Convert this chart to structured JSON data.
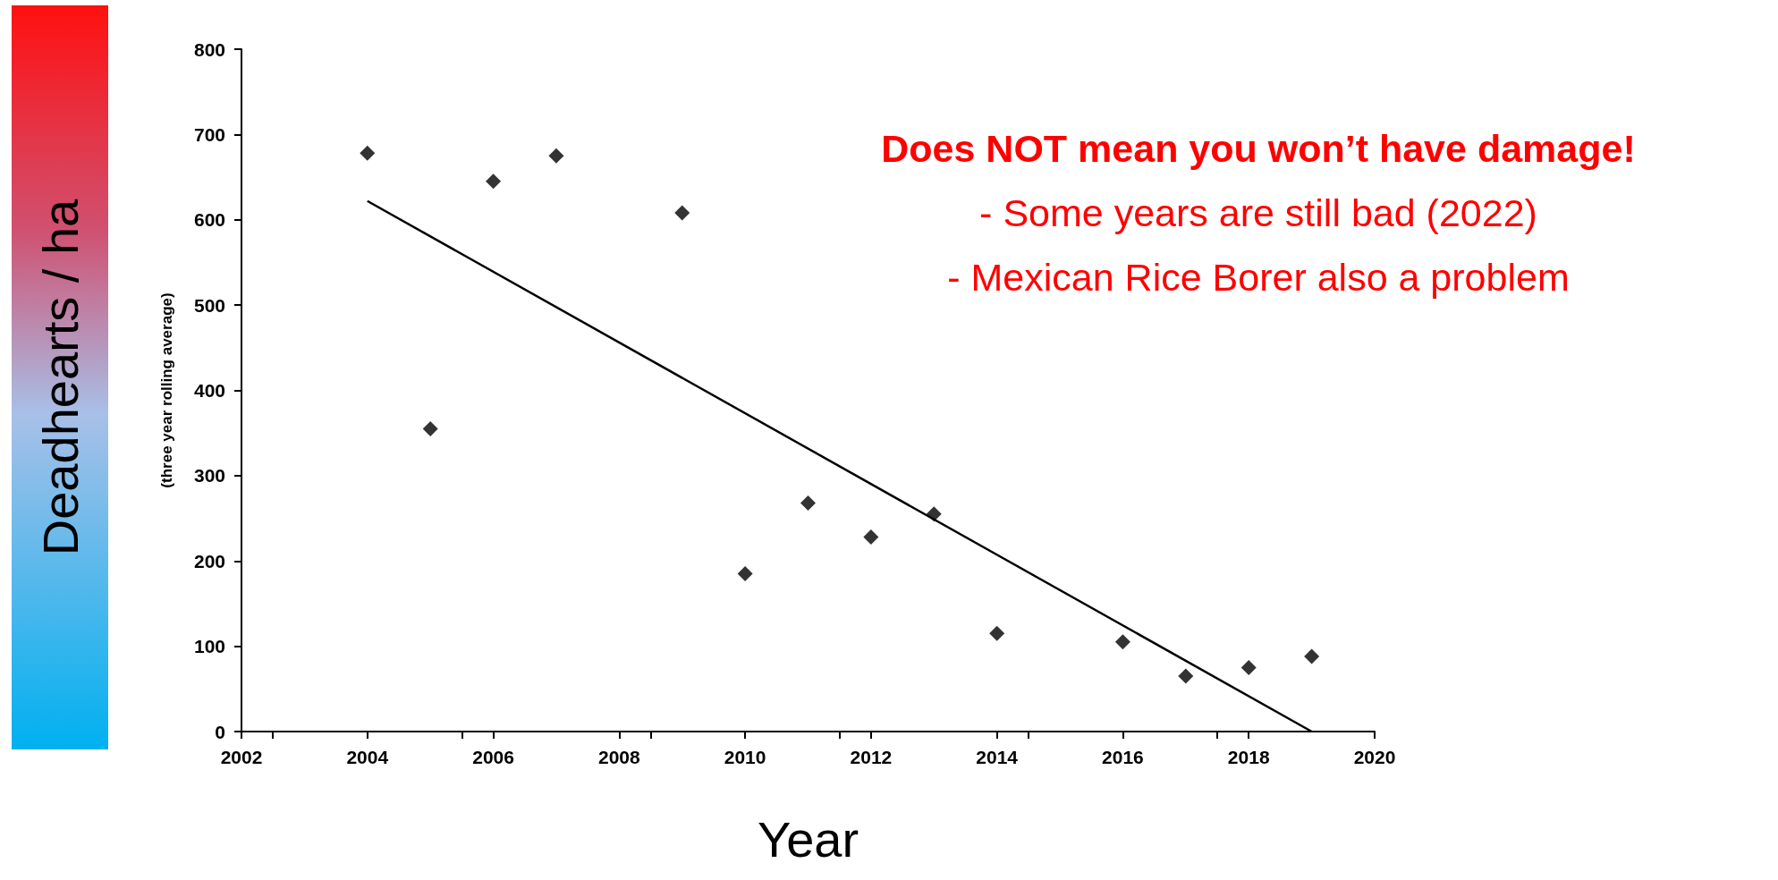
{
  "chart_data": {
    "type": "scatter",
    "xlabel": "Year",
    "ylabel": "Deadhearts / ha",
    "annotations": [
      "(three year rolling average)",
      "Does NOT mean you won’t have damage!",
      "- Some years are still bad (2022)",
      "- Mexican Rice Borer also a problem"
    ],
    "x": [
      2004,
      2005,
      2006,
      2007,
      2009,
      2010,
      2011,
      2012,
      2013,
      2014,
      2016,
      2017,
      2018,
      2019
    ],
    "series": [
      {
        "color": "#000000",
        "marker": "diamond",
        "values": [
          678,
          355,
          645,
          675,
          608,
          185,
          268,
          228,
          255,
          115,
          105,
          65,
          75,
          88
        ]
      },
      {
        "type": "line",
        "color": "#000000",
        "marker": "none",
        "line_style": "solid",
        "x": [
          2004,
          2019
        ],
        "values": [
          622,
          0
        ]
      }
    ],
    "xlim": [
      2002,
      2020
    ],
    "xticks": [
      2002,
      2004,
      2006,
      2008,
      2010,
      2012,
      2014,
      2016,
      2018,
      2020
    ],
    "ylim": [
      0,
      800
    ],
    "yticks": [
      0,
      100,
      200,
      300,
      400,
      500,
      600,
      700,
      800
    ],
    "grid": false
  }
}
